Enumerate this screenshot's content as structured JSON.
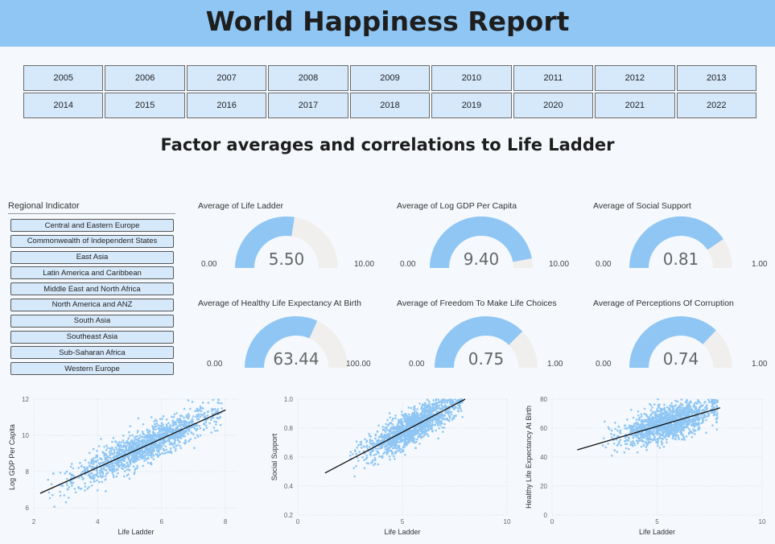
{
  "header": {
    "title": "World Happiness Report"
  },
  "years": [
    "2005",
    "2006",
    "2007",
    "2008",
    "2009",
    "2010",
    "2011",
    "2012",
    "2013",
    "2014",
    "2015",
    "2016",
    "2017",
    "2018",
    "2019",
    "2020",
    "2021",
    "2022"
  ],
  "subtitle": "Factor averages and correlations to Life Ladder",
  "regions": {
    "title": "Regional Indicator",
    "items": [
      "Central and Eastern Europe",
      "Commonwealth of Independent States",
      "East Asia",
      "Latin America and Caribbean",
      "Middle East and North Africa",
      "North America and ANZ",
      "South Asia",
      "Southeast Asia",
      "Sub-Saharan Africa",
      "Western Europe"
    ]
  },
  "colors": {
    "accent": "#8fc6f4",
    "gauge_track": "#f1efed",
    "button_bg": "#d6e9fb",
    "trend": "#111111"
  },
  "gauges": [
    {
      "title": "Average of Life Ladder",
      "value": 5.5,
      "display": "5.50",
      "min": "0.00",
      "max": "10.00",
      "range": [
        0,
        10
      ]
    },
    {
      "title": "Average of Log GDP Per Capita",
      "value": 9.4,
      "display": "9.40",
      "min": "0.00",
      "max": "10.00",
      "range": [
        0,
        10
      ]
    },
    {
      "title": "Average of Social Support",
      "value": 0.81,
      "display": "0.81",
      "min": "0.00",
      "max": "1.00",
      "range": [
        0,
        1
      ]
    },
    {
      "title": "Average of Healthy Life Expectancy At Birth",
      "value": 63.44,
      "display": "63.44",
      "min": "0.00",
      "max": "100.00",
      "range": [
        0,
        100
      ]
    },
    {
      "title": "Average of Freedom To Make Life Choices",
      "value": 0.75,
      "display": "0.75",
      "min": "0.00",
      "max": "1.00",
      "range": [
        0,
        1
      ]
    },
    {
      "title": "Average of Perceptions Of Corruption",
      "value": 0.74,
      "display": "0.74",
      "min": "0.00",
      "max": "1.00",
      "range": [
        0,
        1
      ]
    }
  ],
  "chart_data": [
    {
      "type": "scatter",
      "xlabel": "Life Ladder",
      "ylabel": "Log GDP Per Capita",
      "xlim": [
        2,
        8.4
      ],
      "ylim": [
        5.6,
        12
      ],
      "xticks": [
        "2",
        "4",
        "6",
        "8"
      ],
      "yticks": [
        "6",
        "8",
        "10",
        "12"
      ],
      "trend": [
        [
          2.2,
          6.8
        ],
        [
          8,
          11.4
        ]
      ],
      "grid": true
    },
    {
      "type": "scatter",
      "xlabel": "Life Ladder",
      "ylabel": "Social Support",
      "xlim": [
        0,
        10
      ],
      "ylim": [
        0.2,
        1.0
      ],
      "xticks": [
        "0",
        "5",
        "10"
      ],
      "yticks": [
        "0.2",
        "0.4",
        "0.6",
        "0.8",
        "1.0"
      ],
      "trend": [
        [
          1.3,
          0.49
        ],
        [
          8,
          1.0
        ]
      ],
      "grid": true
    },
    {
      "type": "scatter",
      "xlabel": "Life Ladder",
      "ylabel": "Healthy Life Expectancy At Birth",
      "xlim": [
        0,
        10
      ],
      "ylim": [
        0,
        80
      ],
      "xticks": [
        "0",
        "5",
        "10"
      ],
      "yticks": [
        "0",
        "20",
        "40",
        "60",
        "80"
      ],
      "trend": [
        [
          1.2,
          45
        ],
        [
          8,
          74
        ]
      ],
      "grid": true
    }
  ]
}
